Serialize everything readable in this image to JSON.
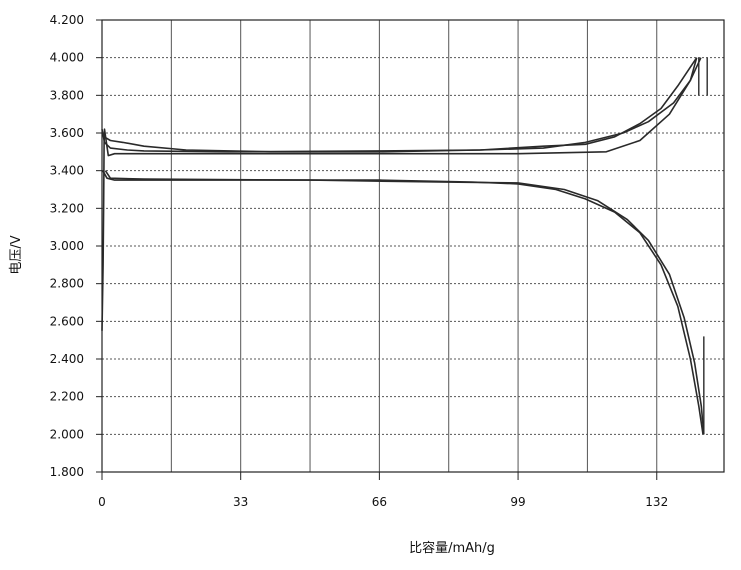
{
  "chart_data": {
    "type": "line",
    "xlabel": "比容量/mAh/g",
    "ylabel": "电压/V",
    "xlim": [
      0,
      148
    ],
    "ylim": [
      1.8,
      4.2
    ],
    "x_ticks": [
      0,
      33,
      66,
      99,
      132
    ],
    "x_tick_labels": [
      "0",
      "33",
      "66",
      "99",
      "132"
    ],
    "y_ticks": [
      1.8,
      2.0,
      2.2,
      2.4,
      2.6,
      2.8,
      3.0,
      3.2,
      3.4,
      3.6,
      3.8,
      4.0,
      4.2
    ],
    "y_tick_labels": [
      "1.800",
      "2.000",
      "2.200",
      "2.400",
      "2.600",
      "2.800",
      "3.000",
      "3.200",
      "3.400",
      "3.600",
      "3.800",
      "4.000",
      "4.200"
    ],
    "grid": true,
    "line_color": "#2a2a2a",
    "series": [
      {
        "values": [
          [
            0,
            3.6
          ],
          [
            0.5,
            3.58
          ],
          [
            2,
            3.56
          ],
          [
            5,
            3.55
          ],
          [
            10,
            3.53
          ],
          [
            20,
            3.51
          ],
          [
            40,
            3.5
          ],
          [
            66,
            3.5
          ],
          [
            90,
            3.51
          ],
          [
            105,
            3.53
          ],
          [
            115,
            3.54
          ],
          [
            122,
            3.58
          ],
          [
            128,
            3.65
          ],
          [
            133,
            3.73
          ],
          [
            137,
            3.85
          ],
          [
            140,
            3.95
          ],
          [
            141.5,
            4.0
          ]
        ]
      },
      {
        "values": [
          [
            0,
            3.62
          ],
          [
            0.6,
            3.55
          ],
          [
            2,
            3.52
          ],
          [
            6,
            3.51
          ],
          [
            10,
            3.505
          ],
          [
            30,
            3.5
          ],
          [
            66,
            3.505
          ],
          [
            90,
            3.51
          ],
          [
            105,
            3.52
          ],
          [
            115,
            3.55
          ],
          [
            124,
            3.6
          ],
          [
            130,
            3.66
          ],
          [
            136,
            3.76
          ],
          [
            140,
            3.88
          ],
          [
            142.5,
            4.0
          ]
        ]
      },
      {
        "values": [
          [
            0.2,
            3.4
          ],
          [
            1.2,
            3.36
          ],
          [
            3,
            3.35
          ],
          [
            10,
            3.35
          ],
          [
            40,
            3.35
          ],
          [
            66,
            3.35
          ],
          [
            88,
            3.34
          ],
          [
            99,
            3.33
          ],
          [
            108,
            3.3
          ],
          [
            115,
            3.25
          ],
          [
            122,
            3.18
          ],
          [
            128,
            3.07
          ],
          [
            133,
            2.9
          ],
          [
            137,
            2.68
          ],
          [
            140,
            2.4
          ],
          [
            142,
            2.15
          ],
          [
            143,
            2.0
          ]
        ]
      },
      {
        "values": [
          [
            0.8,
            3.4
          ],
          [
            2,
            3.36
          ],
          [
            10,
            3.355
          ],
          [
            50,
            3.35
          ],
          [
            80,
            3.34
          ],
          [
            99,
            3.335
          ],
          [
            110,
            3.3
          ],
          [
            118,
            3.24
          ],
          [
            125,
            3.14
          ],
          [
            130,
            3.03
          ],
          [
            135,
            2.85
          ],
          [
            138.5,
            2.62
          ],
          [
            141,
            2.38
          ],
          [
            142.6,
            2.15
          ],
          [
            143.2,
            2.0
          ]
        ]
      },
      {
        "values": [
          [
            0,
            2.55
          ],
          [
            0.25,
            2.9
          ],
          [
            0.4,
            3.25
          ],
          [
            0.5,
            3.55
          ],
          [
            0.6,
            3.62
          ],
          [
            1.5,
            3.48
          ],
          [
            3,
            3.49
          ],
          [
            8,
            3.49
          ],
          [
            20,
            3.49
          ],
          [
            66,
            3.49
          ],
          [
            99,
            3.49
          ],
          [
            120,
            3.5
          ],
          [
            128,
            3.56
          ],
          [
            135,
            3.7
          ],
          [
            140,
            3.88
          ],
          [
            141.5,
            4.0
          ]
        ]
      }
    ],
    "markers": [
      {
        "x": 142,
        "y1": 4.0,
        "y2": 3.8
      },
      {
        "x": 144,
        "y1": 4.0,
        "y2": 3.8
      },
      {
        "x": 143.2,
        "y1": 2.0,
        "y2": 2.52
      }
    ]
  }
}
